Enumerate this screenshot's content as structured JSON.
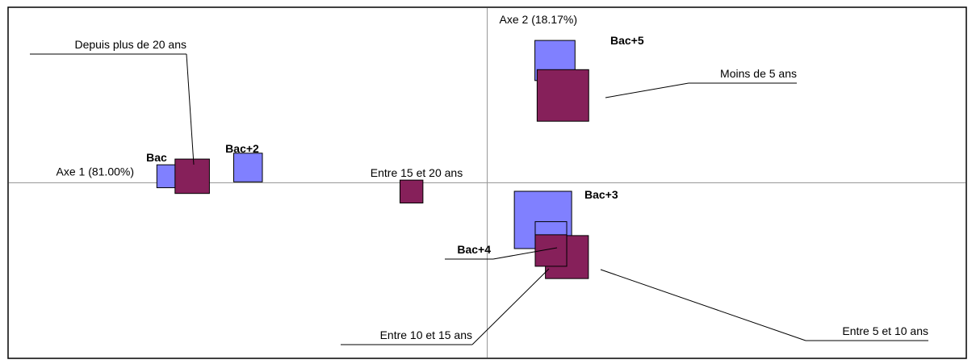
{
  "chart_data": {
    "type": "scatter",
    "title": "",
    "axes": {
      "x_label": "Axe 1 (81.00%)",
      "y_label": "Axe 2 (18.17%)",
      "grid": false,
      "xlim": [
        -1.2,
        1.2
      ],
      "ylim": [
        -0.8,
        0.8
      ]
    },
    "colors": {
      "diplome": "#8080ff",
      "anciennete": "#86205a",
      "axis": "#999999"
    },
    "series": [
      {
        "name": "",
        "color": "#8080ff",
        "points": [
          {
            "label": "Bac",
            "x": -0.8,
            "y": 0.03,
            "size": 0.4,
            "bold": true
          },
          {
            "label": "Bac+2",
            "x": -0.6,
            "y": 0.07,
            "size": 0.5,
            "bold": true
          },
          {
            "label": "Bac+5",
            "x": 0.17,
            "y": 0.56,
            "size": 0.7,
            "bold": true
          },
          {
            "label": "Bac+3",
            "x": 0.14,
            "y": -0.17,
            "size": 1.0,
            "bold": true
          },
          {
            "label": "Bac+4",
            "x": 0.16,
            "y": -0.25,
            "size": 0.55,
            "bold": true
          }
        ]
      },
      {
        "name": "",
        "color": "#86205a",
        "points": [
          {
            "label": "Depuis plus de 20 ans",
            "x": -0.74,
            "y": 0.03,
            "size": 0.6,
            "bold": false
          },
          {
            "label": "Entre 15 et 20 ans",
            "x": -0.19,
            "y": -0.04,
            "size": 0.4,
            "bold": false
          },
          {
            "label": "Moins de 5 ans",
            "x": 0.19,
            "y": 0.4,
            "size": 0.9,
            "bold": false
          },
          {
            "label": "Entre 5 et 10 ans",
            "x": 0.2,
            "y": -0.34,
            "size": 0.75,
            "bold": false
          },
          {
            "label": "Entre 10 et 15 ans",
            "x": 0.16,
            "y": -0.31,
            "size": 0.55,
            "bold": false
          }
        ]
      }
    ]
  }
}
